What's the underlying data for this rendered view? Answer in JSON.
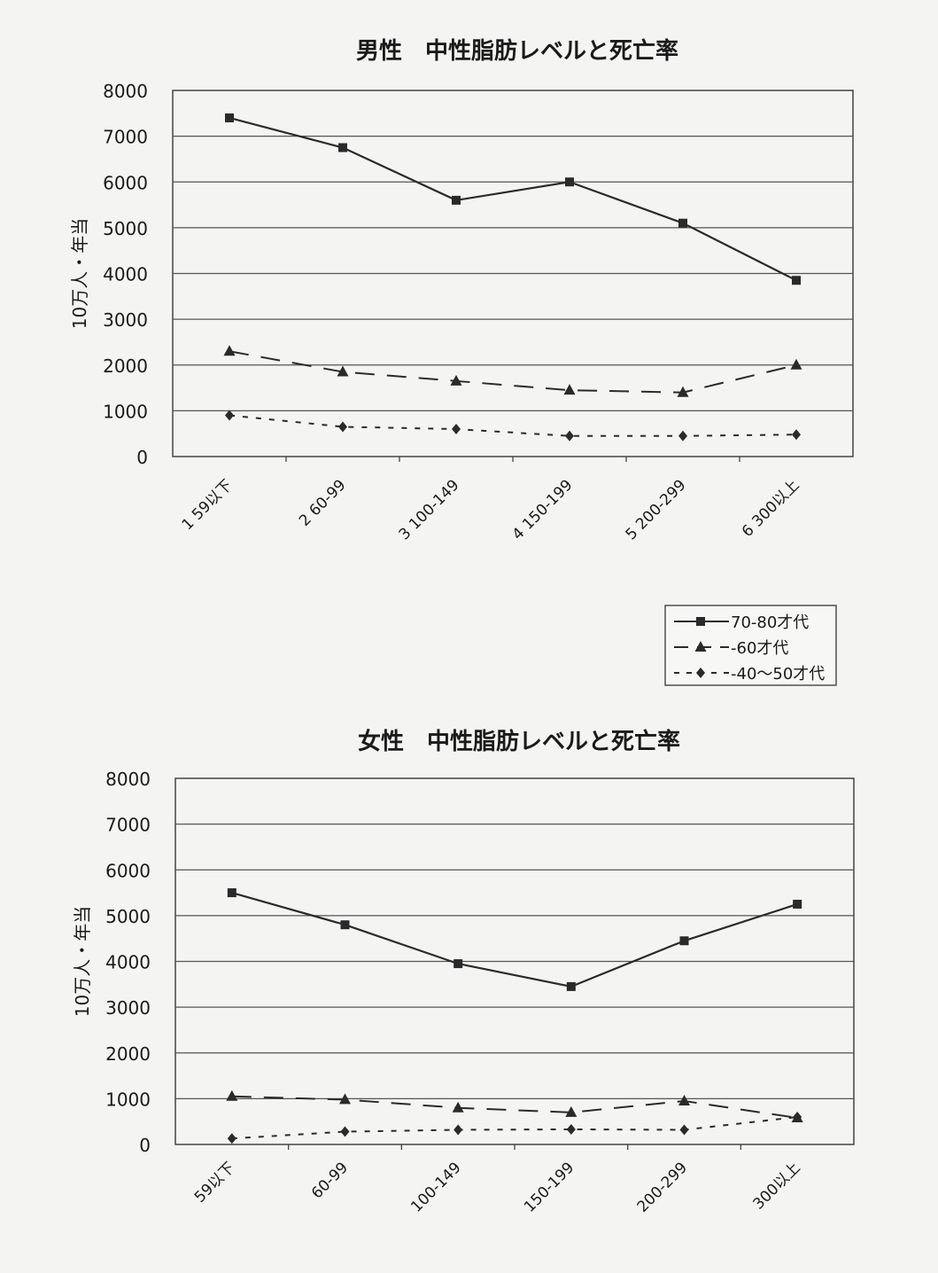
{
  "chart_data": [
    {
      "type": "line",
      "title": "男性　中性脂肪レベルと死亡率",
      "ylabel": "10万人・年当",
      "ylim": [
        0,
        8000
      ],
      "yticks": [
        0,
        1000,
        2000,
        3000,
        4000,
        5000,
        6000,
        7000,
        8000
      ],
      "grid": true,
      "categories": [
        "1 59以下",
        "2 60-99",
        "3 100-149",
        "4 150-199",
        "5 200-299",
        "6 300以上"
      ],
      "series": [
        {
          "name": "70-80才代",
          "values": [
            7400,
            6750,
            5600,
            6000,
            5100,
            3850
          ]
        },
        {
          "name": "60才代",
          "values": [
            2300,
            1850,
            1650,
            1450,
            1400,
            2000
          ]
        },
        {
          "name": "40～50才代",
          "values": [
            900,
            650,
            600,
            450,
            450,
            480
          ]
        }
      ],
      "legend": {
        "placement": "bottom-right",
        "entries": [
          "70-80才代",
          "-60才代",
          "-40～50才代"
        ]
      }
    },
    {
      "type": "line",
      "title": "女性　中性脂肪レベルと死亡率",
      "ylabel": "10万人・年当",
      "ylim": [
        0,
        8000
      ],
      "yticks": [
        0,
        1000,
        2000,
        3000,
        4000,
        5000,
        6000,
        7000,
        8000
      ],
      "grid": true,
      "categories": [
        "59以下",
        "60-99",
        "100-149",
        "150-199",
        "200-299",
        "300以上"
      ],
      "series": [
        {
          "name": "70-80才代",
          "values": [
            5500,
            4800,
            3950,
            3450,
            4450,
            5250
          ]
        },
        {
          "name": "60才代",
          "values": [
            1050,
            980,
            800,
            700,
            950,
            580
          ]
        },
        {
          "name": "40～50才代",
          "values": [
            130,
            280,
            320,
            330,
            320,
            600
          ]
        }
      ]
    }
  ]
}
